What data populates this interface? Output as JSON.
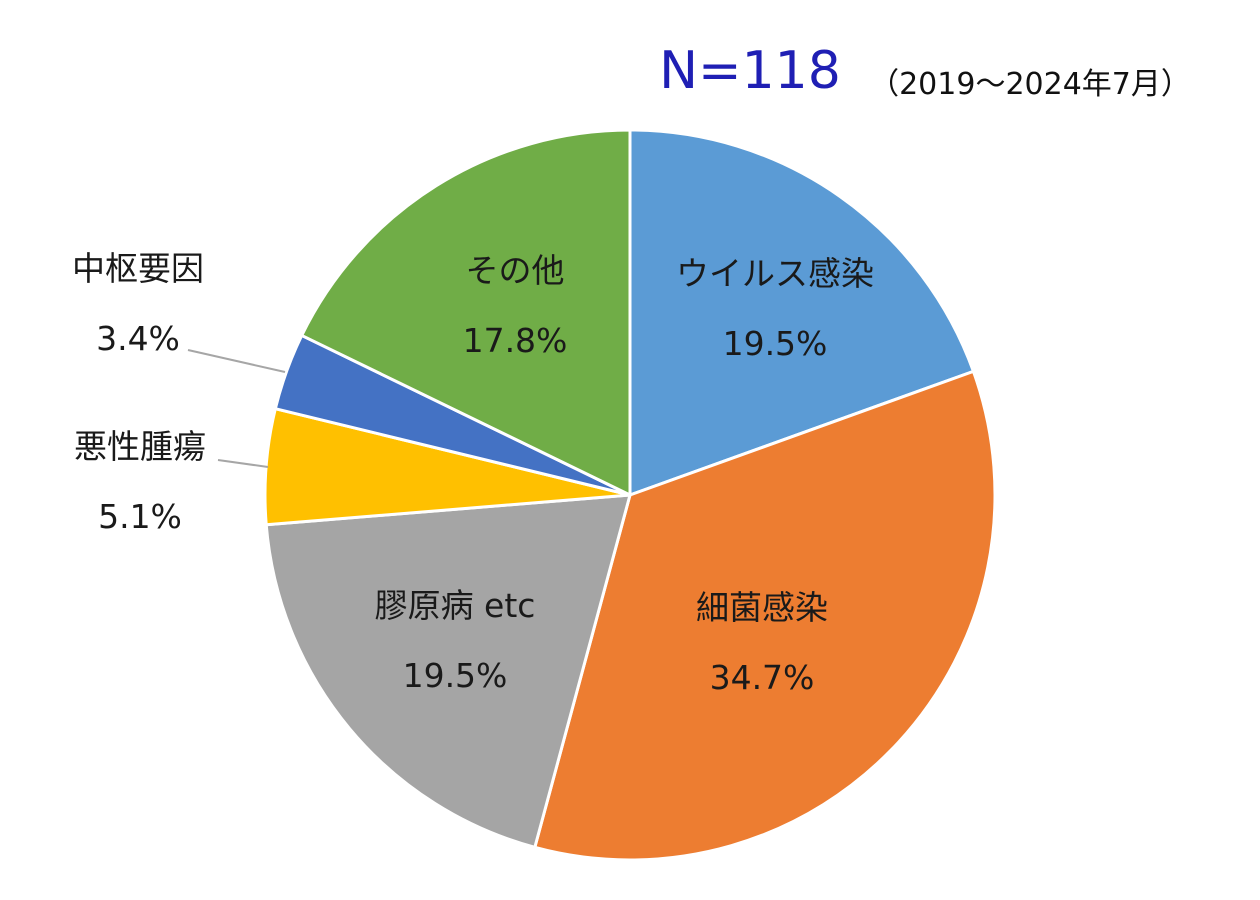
{
  "chart_data": {
    "type": "pie",
    "sample_size_label": "N=118",
    "period_label": "（2019～2024年7月）",
    "start_angle_deg": 0,
    "direction": "clockwise",
    "slices": [
      {
        "label": "ウイルス感染",
        "value": 19.5,
        "value_label": "19.5%",
        "color": "#5B9BD5"
      },
      {
        "label": "細菌感染",
        "value": 34.7,
        "value_label": "34.7%",
        "color": "#ED7D31"
      },
      {
        "label": "膠原病 etc",
        "value": 19.5,
        "value_label": "19.5%",
        "color": "#A5A5A5"
      },
      {
        "label": "悪性腫瘍",
        "value": 5.1,
        "value_label": "5.1%",
        "color": "#FFC000",
        "external_label": true
      },
      {
        "label": "中枢要因",
        "value": 3.4,
        "value_label": "3.4%",
        "color": "#4472C4",
        "external_label": true
      },
      {
        "label": "その他",
        "value": 17.8,
        "value_label": "17.8%",
        "color": "#70AD47"
      }
    ],
    "colors": {
      "n_label": "#1F1FB4",
      "slice_border": "#ffffff",
      "leader_line": "#A6A6A6"
    }
  }
}
